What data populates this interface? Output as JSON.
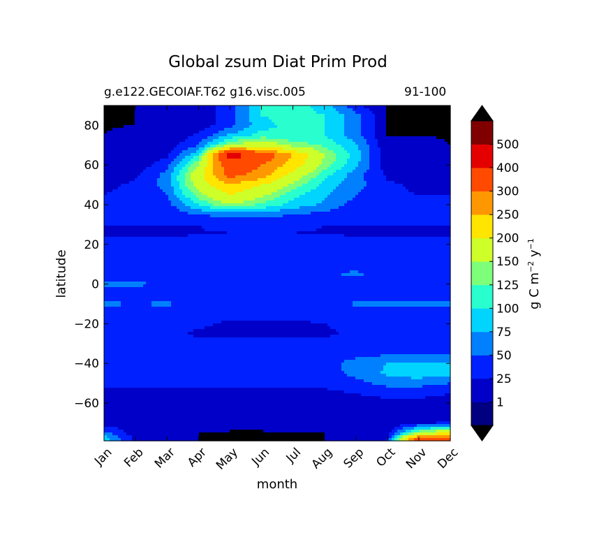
{
  "chart_data": {
    "type": "heatmap",
    "subtype": "filled-contour",
    "title": "Global zsum Diat Prim Prod",
    "subtitle_left": "g.e122.GECOIAF.T62 g16.visc.005",
    "subtitle_right": "91-100",
    "xlabel": "month",
    "ylabel": "latitude",
    "x_categories": [
      "Jan",
      "Feb",
      "Mar",
      "Apr",
      "May",
      "Jun",
      "Jul",
      "Aug",
      "Sep",
      "Oct",
      "Nov",
      "Dec"
    ],
    "y_ticks": [
      80,
      60,
      40,
      20,
      0,
      -20,
      -40,
      -60
    ],
    "y_tick_labels": [
      "80",
      "60",
      "40",
      "20",
      "0",
      "−20",
      "−40",
      "−60"
    ],
    "ylim": [
      -79,
      90
    ],
    "colorbar": {
      "label": "g C m",
      "label_exp1": "−2",
      "label_mid": " y",
      "label_exp2": "−1",
      "levels": [
        1,
        25,
        50,
        75,
        100,
        125,
        150,
        200,
        250,
        300,
        400,
        500
      ],
      "tick_labels": [
        "1",
        "25",
        "50",
        "75",
        "100",
        "125",
        "150",
        "200",
        "250",
        "300",
        "400",
        "500"
      ],
      "colors": [
        "#000080",
        "#0000c8",
        "#0020ff",
        "#0080ff",
        "#00d4ff",
        "#29ffce",
        "#7dff7a",
        "#ceff29",
        "#ffe500",
        "#ff9800",
        "#ff4a00",
        "#e40000",
        "#800000"
      ],
      "extend": "both",
      "under_color": "#000000",
      "over_color": "#000000"
    },
    "grid": false,
    "field": {
      "months": [
        "Jan",
        "Feb",
        "Mar",
        "Apr",
        "May",
        "Jun",
        "Jul",
        "Aug",
        "Sep",
        "Oct",
        "Nov",
        "Dec"
      ],
      "latitudes": [
        90,
        85,
        80,
        75,
        70,
        65,
        60,
        55,
        50,
        45,
        40,
        35,
        30,
        25,
        20,
        15,
        10,
        5,
        0,
        -5,
        -10,
        -15,
        -20,
        -25,
        -30,
        -35,
        -40,
        -45,
        -50,
        -55,
        -60,
        -65,
        -70,
        -75,
        -78
      ],
      "values": [
        [
          0,
          1,
          1,
          5,
          40,
          100,
          110,
          90,
          30,
          0.5,
          0,
          0
        ],
        [
          0,
          1,
          1,
          5,
          40,
          100,
          110,
          100,
          60,
          0.5,
          0,
          0
        ],
        [
          0.5,
          1,
          3,
          10,
          40,
          90,
          110,
          100,
          60,
          1,
          0.5,
          0
        ],
        [
          1,
          3,
          5,
          30,
          80,
          110,
          100,
          100,
          60,
          1,
          1,
          0.5
        ],
        [
          3,
          5,
          10,
          50,
          150,
          180,
          140,
          120,
          80,
          5,
          3,
          1
        ],
        [
          3,
          8,
          20,
          100,
          450,
          350,
          250,
          150,
          90,
          5,
          3,
          3
        ],
        [
          5,
          10,
          40,
          150,
          350,
          300,
          230,
          140,
          80,
          10,
          5,
          5
        ],
        [
          10,
          20,
          60,
          180,
          320,
          280,
          180,
          110,
          60,
          20,
          10,
          10
        ],
        [
          20,
          30,
          60,
          170,
          250,
          200,
          140,
          90,
          60,
          30,
          20,
          20
        ],
        [
          25,
          30,
          50,
          140,
          200,
          160,
          110,
          80,
          50,
          30,
          25,
          25
        ],
        [
          25,
          30,
          40,
          100,
          150,
          120,
          90,
          70,
          40,
          30,
          25,
          25
        ],
        [
          25,
          25,
          30,
          50,
          60,
          60,
          50,
          40,
          30,
          25,
          25,
          25
        ],
        [
          25,
          25,
          25,
          25,
          30,
          30,
          30,
          25,
          25,
          25,
          25,
          25
        ],
        [
          20,
          22,
          22,
          24,
          24,
          24,
          24,
          24,
          23,
          23,
          22,
          20
        ],
        [
          40,
          40,
          40,
          40,
          40,
          40,
          40,
          40,
          40,
          40,
          40,
          40
        ],
        [
          35,
          35,
          35,
          35,
          35,
          35,
          35,
          35,
          35,
          35,
          35,
          35
        ],
        [
          30,
          30,
          30,
          30,
          30,
          30,
          30,
          35,
          40,
          35,
          30,
          30
        ],
        [
          35,
          35,
          35,
          35,
          35,
          35,
          35,
          45,
          55,
          40,
          35,
          35
        ],
        [
          55,
          55,
          45,
          35,
          35,
          35,
          35,
          35,
          35,
          35,
          35,
          35
        ],
        [
          35,
          35,
          35,
          35,
          35,
          35,
          35,
          35,
          35,
          35,
          35,
          35
        ],
        [
          55,
          50,
          55,
          35,
          35,
          35,
          35,
          35,
          55,
          60,
          60,
          55
        ],
        [
          35,
          35,
          35,
          35,
          35,
          35,
          35,
          35,
          35,
          35,
          35,
          35
        ],
        [
          35,
          35,
          35,
          30,
          20,
          20,
          20,
          25,
          35,
          35,
          35,
          35
        ],
        [
          35,
          35,
          35,
          20,
          20,
          20,
          20,
          20,
          30,
          35,
          35,
          35
        ],
        [
          35,
          35,
          35,
          35,
          35,
          35,
          35,
          35,
          35,
          35,
          35,
          35
        ],
        [
          40,
          40,
          40,
          40,
          40,
          40,
          40,
          40,
          40,
          45,
          50,
          45
        ],
        [
          40,
          40,
          40,
          40,
          40,
          40,
          40,
          40,
          60,
          75,
          80,
          75
        ],
        [
          35,
          35,
          35,
          35,
          35,
          35,
          35,
          35,
          60,
          80,
          90,
          80
        ],
        [
          30,
          30,
          30,
          30,
          30,
          30,
          30,
          30,
          40,
          60,
          60,
          50
        ],
        [
          20,
          20,
          20,
          20,
          20,
          20,
          20,
          20,
          25,
          30,
          30,
          25
        ],
        [
          20,
          20,
          20,
          20,
          20,
          20,
          20,
          20,
          20,
          20,
          20,
          20
        ],
        [
          15,
          10,
          10,
          10,
          10,
          10,
          10,
          10,
          10,
          10,
          10,
          12
        ],
        [
          10,
          5,
          5,
          5,
          3,
          3,
          3,
          3,
          5,
          5,
          20,
          30
        ],
        [
          60,
          10,
          2,
          1,
          0.5,
          0.5,
          1,
          1,
          2,
          10,
          150,
          200
        ],
        [
          90,
          20,
          5,
          1,
          0.5,
          0,
          0.5,
          1,
          3,
          25,
          350,
          300
        ]
      ]
    }
  }
}
